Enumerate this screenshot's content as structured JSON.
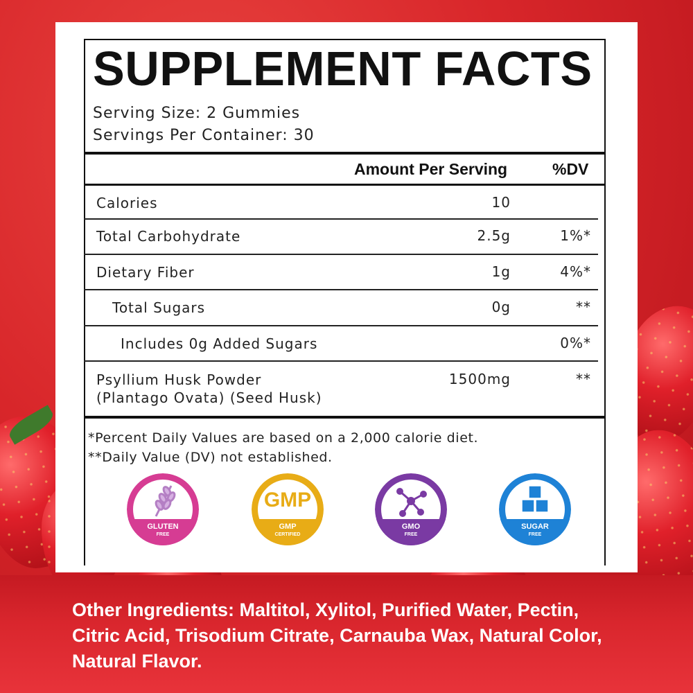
{
  "title": "SUPPLEMENT FACTS",
  "serving_size": "Serving Size: 2 Gummies",
  "servings_per_container": "Servings Per Container: 30",
  "table": {
    "header_amount": "Amount Per Serving",
    "header_dv": "%DV",
    "rows": [
      {
        "label": "Calories",
        "amount": "10",
        "dv": ""
      },
      {
        "label": "Total Carbohydrate",
        "amount": "2.5g",
        "dv": "1%*"
      },
      {
        "label": "Dietary Fiber",
        "amount": "1g",
        "dv": "4%*"
      },
      {
        "label": "Total Sugars",
        "amount": "0g",
        "dv": "**"
      },
      {
        "label": "Includes 0g Added Sugars",
        "amount": "",
        "dv": "0%*"
      },
      {
        "label": "Psyllium Husk Powder",
        "label2": "(Plantago Ovata) (Seed Husk)",
        "amount": "1500mg",
        "dv": "**"
      }
    ]
  },
  "footnotes": [
    "*Percent Daily Values are based on a 2,000 calorie diet.",
    "**Daily Value (DV) not established."
  ],
  "badges": [
    {
      "line1": "GLUTEN",
      "line2": "FREE",
      "icon": "wheat-icon",
      "color": "#d63c93"
    },
    {
      "line1": "GMP",
      "line2": "CERTIFIED",
      "big": "GMP",
      "icon": "gmp-icon",
      "color": "#e8ac16"
    },
    {
      "line1": "GMO",
      "line2": "FREE",
      "icon": "molecule-icon",
      "color": "#7a3aa3"
    },
    {
      "line1": "SUGAR",
      "line2": "FREE",
      "icon": "sugar-cubes-icon",
      "color": "#1e82d6"
    }
  ],
  "other_ingredients": "Other Ingredients: Maltitol, Xylitol, Purified Water, Pectin, Citric Acid, Trisodium Citrate, Carnauba Wax, Natural Color, Natural Flavor."
}
